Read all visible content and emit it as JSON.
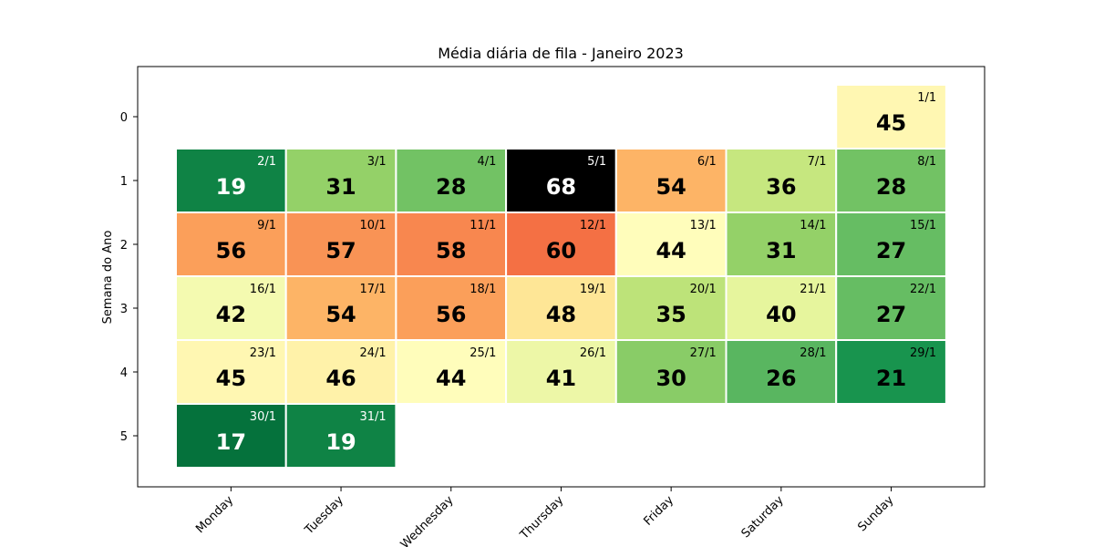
{
  "chart_data": {
    "type": "heatmap",
    "title": "Média diária de fila - Janeiro 2023",
    "ylabel": "Semana do Ano",
    "xlabel": "",
    "x_categories": [
      "Monday",
      "Tuesday",
      "Wednesday",
      "Thursday",
      "Friday",
      "Saturday",
      "Sunday"
    ],
    "y_ticks": [
      "0",
      "1",
      "2",
      "3",
      "4",
      "5"
    ],
    "colormap": "RdYlGn_r",
    "color_range": [
      17,
      68
    ],
    "cells": [
      {
        "week": 0,
        "day": 6,
        "date": "1/1",
        "value": 45
      },
      {
        "week": 1,
        "day": 0,
        "date": "2/1",
        "value": 19
      },
      {
        "week": 1,
        "day": 1,
        "date": "3/1",
        "value": 31
      },
      {
        "week": 1,
        "day": 2,
        "date": "4/1",
        "value": 28
      },
      {
        "week": 1,
        "day": 3,
        "date": "5/1",
        "value": 68
      },
      {
        "week": 1,
        "day": 4,
        "date": "6/1",
        "value": 54
      },
      {
        "week": 1,
        "day": 5,
        "date": "7/1",
        "value": 36
      },
      {
        "week": 1,
        "day": 6,
        "date": "8/1",
        "value": 28
      },
      {
        "week": 2,
        "day": 0,
        "date": "9/1",
        "value": 56
      },
      {
        "week": 2,
        "day": 1,
        "date": "10/1",
        "value": 57
      },
      {
        "week": 2,
        "day": 2,
        "date": "11/1",
        "value": 58
      },
      {
        "week": 2,
        "day": 3,
        "date": "12/1",
        "value": 60
      },
      {
        "week": 2,
        "day": 4,
        "date": "13/1",
        "value": 44
      },
      {
        "week": 2,
        "day": 5,
        "date": "14/1",
        "value": 31
      },
      {
        "week": 2,
        "day": 6,
        "date": "15/1",
        "value": 27
      },
      {
        "week": 3,
        "day": 0,
        "date": "16/1",
        "value": 42
      },
      {
        "week": 3,
        "day": 1,
        "date": "17/1",
        "value": 54
      },
      {
        "week": 3,
        "day": 2,
        "date": "18/1",
        "value": 56
      },
      {
        "week": 3,
        "day": 3,
        "date": "19/1",
        "value": 48
      },
      {
        "week": 3,
        "day": 4,
        "date": "20/1",
        "value": 35
      },
      {
        "week": 3,
        "day": 5,
        "date": "21/1",
        "value": 40
      },
      {
        "week": 3,
        "day": 6,
        "date": "22/1",
        "value": 27
      },
      {
        "week": 4,
        "day": 0,
        "date": "23/1",
        "value": 45
      },
      {
        "week": 4,
        "day": 1,
        "date": "24/1",
        "value": 46
      },
      {
        "week": 4,
        "day": 2,
        "date": "25/1",
        "value": 44
      },
      {
        "week": 4,
        "day": 3,
        "date": "26/1",
        "value": 41
      },
      {
        "week": 4,
        "day": 4,
        "date": "27/1",
        "value": 30
      },
      {
        "week": 4,
        "day": 5,
        "date": "28/1",
        "value": 26
      },
      {
        "week": 4,
        "day": 6,
        "date": "29/1",
        "value": 21
      },
      {
        "week": 5,
        "day": 0,
        "date": "30/1",
        "value": 17
      },
      {
        "week": 5,
        "day": 1,
        "date": "31/1",
        "value": 19
      }
    ]
  }
}
